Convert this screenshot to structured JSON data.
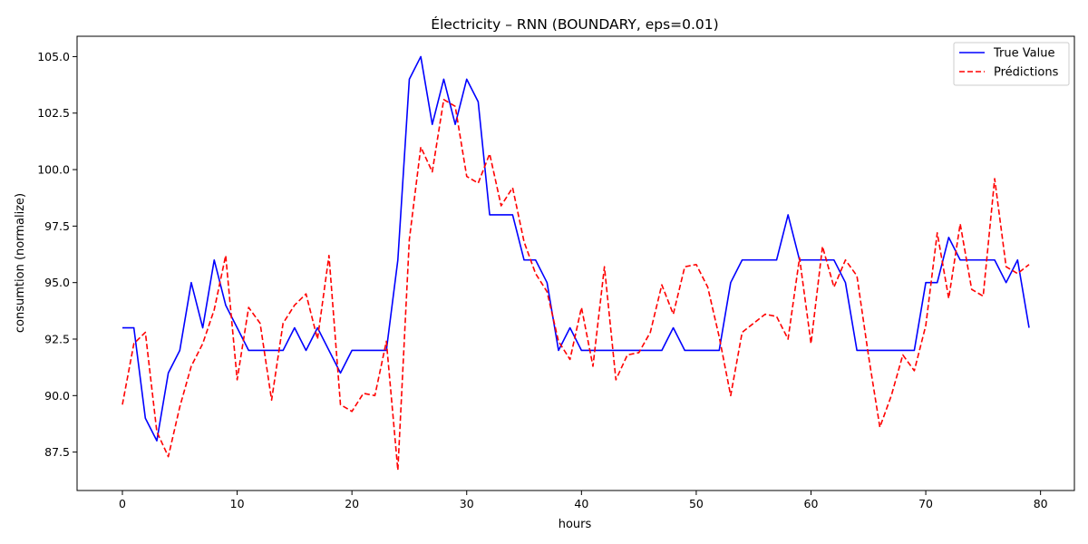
{
  "chart_data": {
    "type": "line",
    "title": "Électricity – RNN (BOUNDARY, eps=0.01)",
    "xlabel": "hours",
    "ylabel": "consumtion (normalize)",
    "xlim": [
      -3.95,
      82.95
    ],
    "ylim": [
      85.8,
      105.9
    ],
    "xticks": [
      0,
      10,
      20,
      30,
      40,
      50,
      60,
      70,
      80
    ],
    "yticks": [
      87.5,
      90.0,
      92.5,
      95.0,
      97.5,
      100.0,
      102.5,
      105.0
    ],
    "ytick_labels": [
      "87.5",
      "90.0",
      "92.5",
      "95.0",
      "97.5",
      "100.0",
      "102.5",
      "105.0"
    ],
    "grid": false,
    "legend_position": "top-right",
    "series": [
      {
        "name": "True Value",
        "color": "#0000ff",
        "style": "solid",
        "values": [
          93,
          93,
          89,
          88,
          91,
          92,
          95,
          93,
          96,
          94,
          93,
          92,
          92,
          92,
          92,
          93,
          92,
          93,
          92,
          91,
          92,
          92,
          92,
          92,
          96,
          104,
          105,
          102,
          104,
          102,
          104,
          103,
          98,
          98,
          98,
          96,
          96,
          95,
          92,
          93,
          92,
          92,
          92,
          92,
          92,
          92,
          92,
          92,
          93,
          92,
          92,
          92,
          92,
          95,
          96,
          96,
          96,
          96,
          98,
          96,
          96,
          96,
          96,
          95,
          92,
          92,
          92,
          92,
          92,
          92,
          95,
          95,
          97,
          96,
          96,
          96,
          96,
          95,
          96,
          93
        ]
      },
      {
        "name": "Prédictions",
        "color": "#ff0000",
        "style": "dashed",
        "values": [
          89.6,
          92.3,
          92.8,
          88.4,
          87.3,
          89.5,
          91.3,
          92.3,
          93.8,
          96.2,
          90.7,
          93.9,
          93.2,
          89.8,
          93.2,
          94.0,
          94.5,
          92.5,
          96.2,
          89.6,
          89.3,
          90.1,
          90.0,
          92.4,
          86.7,
          96.9,
          101.0,
          99.9,
          103.1,
          102.8,
          99.7,
          99.4,
          100.7,
          98.4,
          99.2,
          96.8,
          95.4,
          94.6,
          92.4,
          91.6,
          93.9,
          91.3,
          95.7,
          90.7,
          91.8,
          91.9,
          92.8,
          94.9,
          93.6,
          95.7,
          95.8,
          94.8,
          92.6,
          90.0,
          92.8,
          93.2,
          93.6,
          93.5,
          92.5,
          96.1,
          92.3,
          96.6,
          94.8,
          96.0,
          95.3,
          91.8,
          88.6,
          90.0,
          91.8,
          91.1,
          93.1,
          97.2,
          94.3,
          97.6,
          94.7,
          94.4,
          99.6,
          95.7,
          95.4,
          95.8
        ]
      }
    ]
  }
}
